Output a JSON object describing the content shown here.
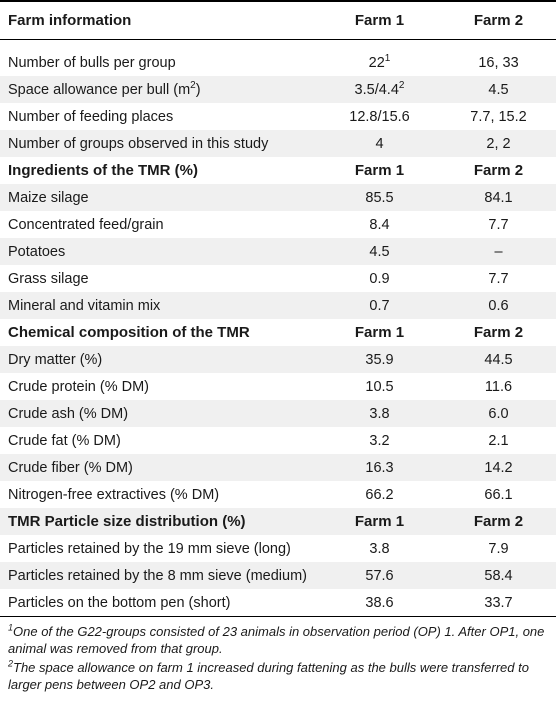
{
  "header": {
    "label": "Farm information",
    "farm1": "Farm 1",
    "farm2": "Farm 2"
  },
  "rows_farm": [
    {
      "label": "Number of bulls per group",
      "farm1": "22",
      "farm1_sup": "1",
      "farm2": "16, 33"
    },
    {
      "label": "Space allowance per bull (m",
      "label_sup": "2",
      "label_end": ")",
      "farm1": "3.5/4.4",
      "farm1_sup": "2",
      "farm2": "4.5"
    },
    {
      "label": "Number of feeding places",
      "farm1": "12.8/15.6",
      "farm2": "7.7, 15.2"
    },
    {
      "label": "Number of groups observed in this study",
      "farm1": "4",
      "farm2": "2, 2"
    }
  ],
  "section_ingredients": {
    "label": "Ingredients of the TMR (%)",
    "farm1": "Farm 1",
    "farm2": "Farm 2"
  },
  "rows_ingredients": [
    {
      "label": "Maize silage",
      "farm1": "85.5",
      "farm2": "84.1"
    },
    {
      "label": "Concentrated feed/grain",
      "farm1": "8.4",
      "farm2": "7.7"
    },
    {
      "label": "Potatoes",
      "farm1": "4.5",
      "farm2": "–"
    },
    {
      "label": "Grass silage",
      "farm1": "0.9",
      "farm2": "7.7"
    },
    {
      "label": "Mineral and vitamin mix",
      "farm1": "0.7",
      "farm2": "0.6"
    }
  ],
  "section_chemical": {
    "label": "Chemical composition of the TMR",
    "farm1": "Farm 1",
    "farm2": "Farm 2"
  },
  "rows_chemical": [
    {
      "label": "Dry matter (%)",
      "farm1": "35.9",
      "farm2": "44.5"
    },
    {
      "label": "Crude protein (% DM)",
      "farm1": "10.5",
      "farm2": "11.6"
    },
    {
      "label": "Crude ash (% DM)",
      "farm1": "3.8",
      "farm2": "6.0"
    },
    {
      "label": "Crude fat (% DM)",
      "farm1": "3.2",
      "farm2": "2.1"
    },
    {
      "label": "Crude fiber (% DM)",
      "farm1": "16.3",
      "farm2": "14.2"
    },
    {
      "label": "Nitrogen-free extractives (% DM)",
      "farm1": "66.2",
      "farm2": "66.1"
    }
  ],
  "section_particle": {
    "label": "TMR Particle size distribution (%)",
    "farm1": "Farm 1",
    "farm2": "Farm 2"
  },
  "rows_particle": [
    {
      "label": "Particles retained by the 19 mm sieve (long)",
      "farm1": "3.8",
      "farm2": "7.9"
    },
    {
      "label": "Particles retained by the 8 mm sieve (medium)",
      "farm1": "57.6",
      "farm2": "58.4"
    },
    {
      "label": "Particles on the bottom pen (short)",
      "farm1": "38.6",
      "farm2": "33.7"
    }
  ],
  "footnotes": [
    {
      "mark": "1",
      "text": "One of the G22-groups consisted of 23 animals in observation period (OP) 1. After OP1, one animal was removed from that group."
    },
    {
      "mark": "2",
      "text": "The space allowance on farm 1 increased during fattening as the bulls were transferred to larger pens between OP2 and OP3."
    }
  ]
}
